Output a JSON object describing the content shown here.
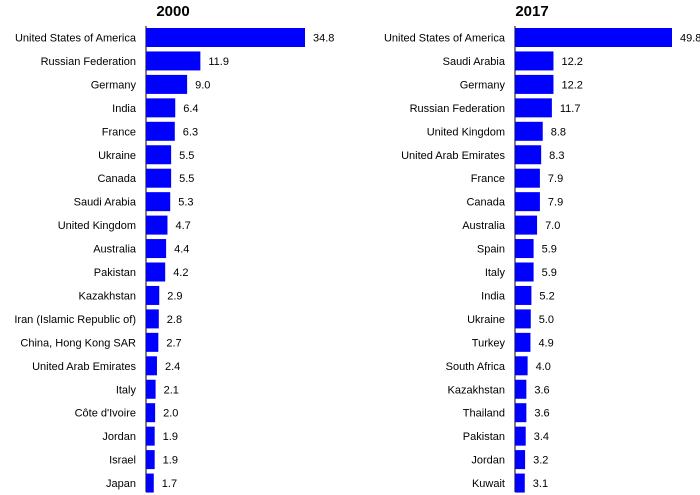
{
  "chart_data": [
    {
      "type": "bar",
      "orientation": "horizontal",
      "title": "2000",
      "bar_color": "#0000ff",
      "categories": [
        "United States of America",
        "Russian Federation",
        "Germany",
        "India",
        "France",
        "Ukraine",
        "Canada",
        "Saudi Arabia",
        "United Kingdom",
        "Australia",
        "Pakistan",
        "Kazakhstan",
        "Iran (Islamic Republic of)",
        "China, Hong Kong SAR",
        "United Arab Emirates",
        "Italy",
        "Côte d'Ivoire",
        "Jordan",
        "Israel",
        "Japan"
      ],
      "values": [
        34.8,
        11.9,
        9.0,
        6.4,
        6.3,
        5.5,
        5.5,
        5.3,
        4.7,
        4.4,
        4.2,
        2.9,
        2.8,
        2.7,
        2.4,
        2.1,
        2.0,
        1.9,
        1.9,
        1.7
      ],
      "value_labels": [
        "34.8",
        "11.9",
        "9.0",
        "6.4",
        "6.3",
        "5.5",
        "5.5",
        "5.3",
        "4.7",
        "4.4",
        "4.2",
        "2.9",
        "2.8",
        "2.7",
        "2.4",
        "2.1",
        "2.0",
        "1.9",
        "1.9",
        "1.7"
      ],
      "grid": false
    },
    {
      "type": "bar",
      "orientation": "horizontal",
      "title": "2017",
      "bar_color": "#0000ff",
      "categories": [
        "United States of America",
        "Saudi Arabia",
        "Germany",
        "Russian Federation",
        "United Kingdom",
        "United Arab Emirates",
        "France",
        "Canada",
        "Australia",
        "Spain",
        "Italy",
        "India",
        "Ukraine",
        "Turkey",
        "South Africa",
        "Kazakhstan",
        "Thailand",
        "Pakistan",
        "Jordan",
        "Kuwait"
      ],
      "values": [
        49.8,
        12.2,
        12.2,
        11.7,
        8.8,
        8.3,
        7.9,
        7.9,
        7.0,
        5.9,
        5.9,
        5.2,
        5.0,
        4.9,
        4.0,
        3.6,
        3.6,
        3.4,
        3.2,
        3.1
      ],
      "value_labels": [
        "49.8",
        "12.2",
        "12.2",
        "11.7",
        "8.8",
        "8.3",
        "7.9",
        "7.9",
        "7.0",
        "5.9",
        "5.9",
        "5.2",
        "5.0",
        "4.9",
        "4.0",
        "3.6",
        "3.6",
        "3.4",
        "3.2",
        "3.1"
      ],
      "grid": false
    }
  ]
}
